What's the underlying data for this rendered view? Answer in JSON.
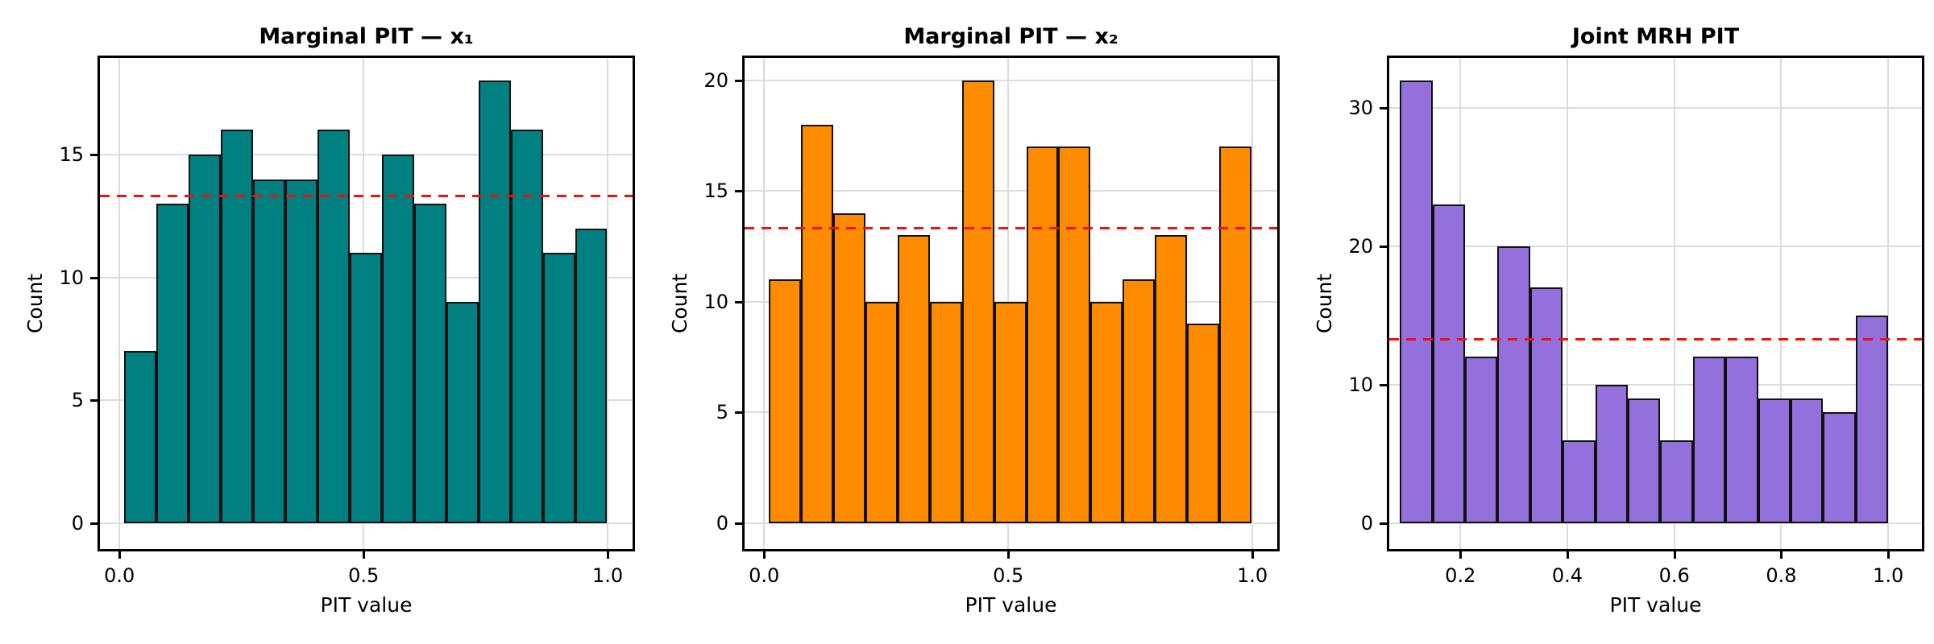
{
  "figure": {
    "background": "#ffffff",
    "frame_color": "#000000",
    "grid_color": "#dcdcdc",
    "text_color": "#000000"
  },
  "chart_data": [
    {
      "type": "bar",
      "subtype": "histogram",
      "title": "Marginal PIT — x₁",
      "xlabel": "PIT value",
      "ylabel": "Count",
      "bar_color": "#008080",
      "edge_color": "#111111",
      "counts": [
        7,
        13,
        15,
        16,
        14,
        14,
        16,
        11,
        15,
        13,
        9,
        18,
        16,
        11,
        12
      ],
      "n_bins": 15,
      "bin_start": 0.009,
      "bin_end": 0.999,
      "xlim": [
        -0.04,
        1.051
      ],
      "ylim": [
        -1.05,
        18.93
      ],
      "xticks": [
        0.0,
        0.5,
        1.0
      ],
      "xtick_labels": [
        "0.0",
        "0.5",
        "1.0"
      ],
      "yticks": [
        0,
        5,
        10,
        15
      ],
      "ytick_labels": [
        "0",
        "5",
        "10",
        "15"
      ],
      "grid": true,
      "expected_line": {
        "value": 13.33,
        "color": "#ee1111",
        "style": "dashed"
      }
    },
    {
      "type": "bar",
      "subtype": "histogram",
      "title": "Marginal PIT — x₂",
      "xlabel": "PIT value",
      "ylabel": "Count",
      "bar_color": "#ff8c00",
      "edge_color": "#111111",
      "counts": [
        11,
        18,
        14,
        10,
        13,
        10,
        20,
        10,
        17,
        17,
        10,
        11,
        13,
        9,
        17
      ],
      "n_bins": 15,
      "bin_start": 0.01,
      "bin_end": 0.998,
      "xlim": [
        -0.04,
        1.051
      ],
      "ylim": [
        -1.16,
        21.0
      ],
      "xticks": [
        0.0,
        0.5,
        1.0
      ],
      "xtick_labels": [
        "0.0",
        "0.5",
        "1.0"
      ],
      "yticks": [
        0,
        5,
        10,
        15,
        20
      ],
      "ytick_labels": [
        "0",
        "5",
        "10",
        "15",
        "20"
      ],
      "grid": true,
      "expected_line": {
        "value": 13.33,
        "color": "#ee1111",
        "style": "dashed"
      }
    },
    {
      "type": "bar",
      "subtype": "histogram",
      "title": "Joint MRH PIT",
      "xlabel": "PIT value",
      "ylabel": "Count",
      "bar_color": "#9370db",
      "edge_color": "#111111",
      "counts": [
        32,
        23,
        12,
        20,
        17,
        6,
        10,
        9,
        6,
        12,
        12,
        9,
        9,
        8,
        15
      ],
      "n_bins": 15,
      "bin_start": 0.087,
      "bin_end": 1.0,
      "xlim": [
        0.067,
        1.063
      ],
      "ylim": [
        -1.87,
        33.6
      ],
      "xticks": [
        0.2,
        0.4,
        0.6,
        0.8,
        1.0
      ],
      "xtick_labels": [
        "0.2",
        "0.4",
        "0.6",
        "0.8",
        "1.0"
      ],
      "yticks": [
        0,
        10,
        20,
        30
      ],
      "ytick_labels": [
        "0",
        "10",
        "20",
        "30"
      ],
      "grid": true,
      "expected_line": {
        "value": 13.33,
        "color": "#ee1111",
        "style": "dashed"
      }
    }
  ]
}
